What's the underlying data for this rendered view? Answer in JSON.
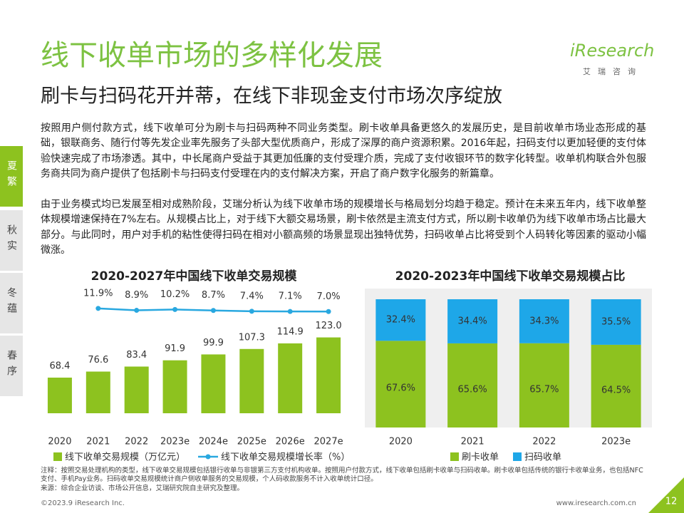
{
  "header": {
    "title": "线下收单市场的多样化发展",
    "subtitle": "刷卡与扫码花开并蒂，在线下非现金支付市场次序绽放",
    "logo": "iResearch",
    "logo_sub": "艾瑞咨询"
  },
  "side_tabs": [
    "夏繁",
    "秋实",
    "冬蕴",
    "春序"
  ],
  "paragraphs": [
    "按照用户侧付款方式，线下收单可分为刷卡与扫码两种不同业务类型。刷卡收单具备更悠久的发展历史，是目前收单市场业态形成的基础，银联商务、随行付等先发企业率先服务了头部大型优质商户，形成了深厚的商户资源积累。2016年起，扫码支付以更加轻便的支付体验快速完成了市场渗透。其中，中长尾商户受益于其更加低廉的支付受理介质，完成了支付收银环节的数字化转型。收单机构联合外包服务商共同为商户提供了包括刷卡与扫码支付受理在内的支付解决方案，开启了商户数字化服务的新篇章。",
    "由于业务模式均已发展至相对成熟阶段，艾瑞分析认为线下收单市场的规模增长与格局划分均趋于稳定。预计在未来五年内，线下收单整体规模增速保持在7%左右。从规模占比上，对于线下大额交易场景，刷卡依然是主流支付方式，所以刷卡收单仍为线下收单市场占比最大部分。与此同时，用户对手机的粘性使得扫码在相对小额高频的场景显现出独特优势，扫码收单占比将受到个人码转化等因素的驱动小幅微涨。"
  ],
  "chart_data": [
    {
      "type": "bar",
      "title": "2020-2027年中国线下收单交易规模",
      "categories": [
        "2020",
        "2021",
        "2022",
        "2023e",
        "2024e",
        "2025e",
        "2026e",
        "2027e"
      ],
      "ylim": [
        20,
        140
      ],
      "y2lim": [
        -150,
        15
      ],
      "series": [
        {
          "name": "线下收单交易规模（万亿元）",
          "color": "#8dc21f",
          "values": [
            68.4,
            76.6,
            83.4,
            91.9,
            99.9,
            107.3,
            114.9,
            123.0
          ],
          "value_labels": [
            "68.4",
            "76.6",
            "83.4",
            "91.9",
            "99.9",
            "107.3",
            "114.9",
            "123.0"
          ]
        },
        {
          "name": "线下收单交易规模增长率（%）",
          "type": "line",
          "axis": "y2",
          "color": "#29a8e0",
          "values": [
            null,
            11.9,
            8.9,
            10.2,
            8.7,
            7.4,
            7.1,
            7.0
          ],
          "value_labels": [
            null,
            "11.9%",
            "8.9%",
            "10.2%",
            "8.7%",
            "7.4%",
            "7.1%",
            "7.0%"
          ]
        }
      ]
    },
    {
      "type": "bar",
      "stacked": true,
      "title": "2020-2023年中国线下收单交易规模占比",
      "categories": [
        "2020",
        "2021",
        "2022",
        "2023e"
      ],
      "ylim": [
        0,
        100
      ],
      "series": [
        {
          "name": "刷卡收单",
          "color": "#8dc21f",
          "values": [
            67.6,
            65.6,
            65.7,
            64.5
          ],
          "value_labels": [
            "67.6%",
            "65.6%",
            "65.7%",
            "64.5%"
          ]
        },
        {
          "name": "扫码收单",
          "color": "#1ea7e8",
          "values": [
            32.4,
            34.4,
            34.3,
            35.5
          ],
          "value_labels": [
            "32.4%",
            "34.4%",
            "34.3%",
            "35.5%"
          ]
        }
      ]
    }
  ],
  "notes": [
    "注释：按照交易处理机构的类型，线下收单交易规模包括银行收单与非银第三方支付机构收单。按照用户付款方式，线下收单包括刷卡收单与扫码收单。刷卡收单包括传统的银行卡收单业务，也包括NFC支付、手机Pay业务。扫码收单交易规模统计商户侧收单服务的交易规模，个人码收款服务不计入收单统计口径。",
    "来源：综合企业访谈、市场公开信息，艾瑞研究院自主研究及整理。"
  ],
  "footer": {
    "copyright": "©2023.9 iResearch Inc.",
    "website": "www.iresearch.com.cn",
    "page": "12"
  }
}
